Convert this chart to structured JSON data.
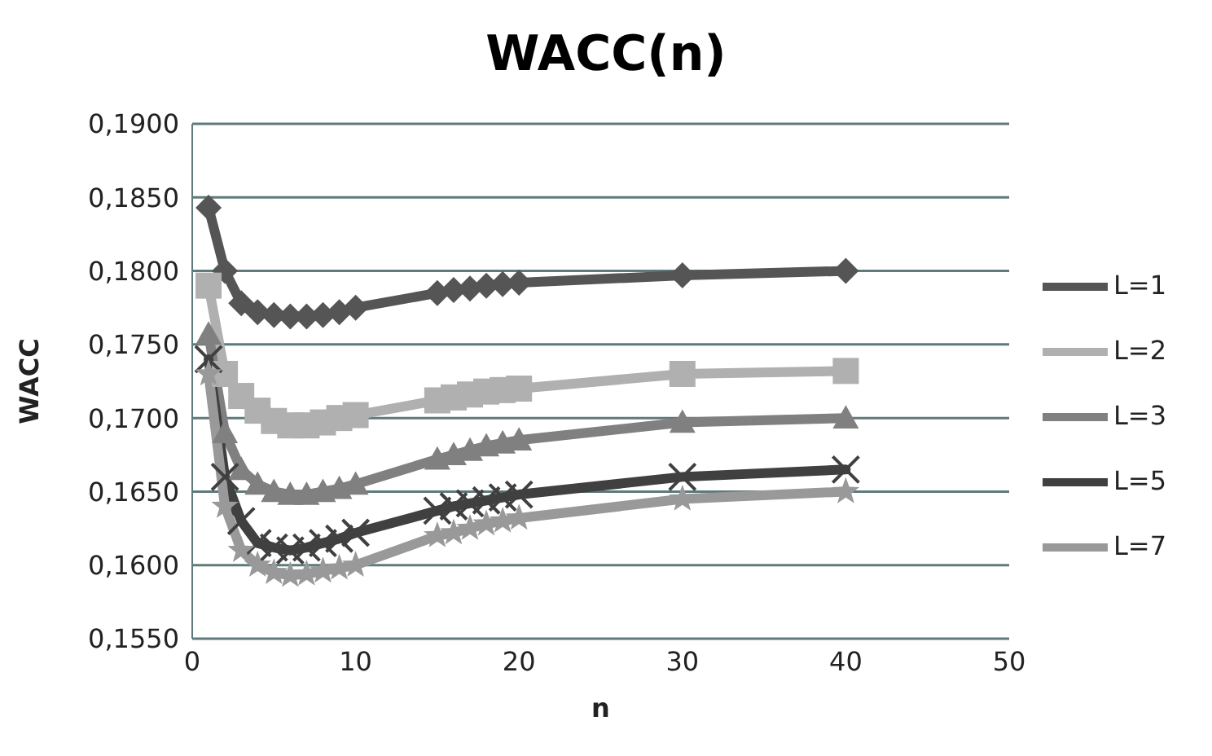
{
  "chart_data": {
    "type": "line",
    "title": "WACC(n)",
    "xlabel": "n",
    "ylabel": "WACC",
    "x": [
      1,
      2,
      3,
      4,
      5,
      6,
      7,
      8,
      9,
      10,
      15,
      16,
      17,
      18,
      19,
      20,
      30,
      40
    ],
    "series": [
      {
        "name": "L=1",
        "color": "#555555",
        "marker": "diamond",
        "values": [
          0.1843,
          0.18,
          0.1778,
          0.1772,
          0.177,
          0.1769,
          0.1769,
          0.177,
          0.1772,
          0.1775,
          0.1785,
          0.1787,
          0.1788,
          0.179,
          0.1791,
          0.1792,
          0.1797,
          0.18
        ]
      },
      {
        "name": "L=2",
        "color": "#b0b0b0",
        "marker": "square",
        "values": [
          0.179,
          0.173,
          0.1715,
          0.1705,
          0.1698,
          0.1695,
          0.1695,
          0.1697,
          0.17,
          0.1702,
          0.1712,
          0.1714,
          0.1716,
          0.1718,
          0.1719,
          0.172,
          0.173,
          0.1732
        ]
      },
      {
        "name": "L=3",
        "color": "#808080",
        "marker": "triangle",
        "values": [
          0.1757,
          0.169,
          0.1665,
          0.1655,
          0.165,
          0.1648,
          0.1648,
          0.165,
          0.1652,
          0.1655,
          0.1672,
          0.1675,
          0.1678,
          0.1681,
          0.1683,
          0.1685,
          0.1697,
          0.17
        ]
      },
      {
        "name": "L=5",
        "color": "#404040",
        "marker": "cross",
        "values": [
          0.174,
          0.166,
          0.163,
          0.1615,
          0.1612,
          0.161,
          0.1612,
          0.1615,
          0.1618,
          0.1622,
          0.1637,
          0.164,
          0.1642,
          0.1644,
          0.1646,
          0.1648,
          0.166,
          0.1665
        ]
      },
      {
        "name": "L=7",
        "color": "#999999",
        "marker": "star",
        "values": [
          0.173,
          0.164,
          0.161,
          0.16,
          0.1595,
          0.1593,
          0.1594,
          0.1596,
          0.1598,
          0.16,
          0.162,
          0.1622,
          0.1625,
          0.1628,
          0.163,
          0.1632,
          0.1645,
          0.165
        ]
      }
    ],
    "xlim": [
      0,
      50
    ],
    "xticks": [
      0,
      10,
      20,
      30,
      40,
      50
    ],
    "ylim": [
      0.155,
      0.19
    ],
    "yticks": [
      {
        "value": 0.155,
        "label": "0,1550"
      },
      {
        "value": 0.16,
        "label": "0,1600"
      },
      {
        "value": 0.165,
        "label": "0,1650"
      },
      {
        "value": 0.17,
        "label": "0,1700"
      },
      {
        "value": 0.175,
        "label": "0,1750"
      },
      {
        "value": 0.18,
        "label": "0,1800"
      },
      {
        "value": 0.185,
        "label": "0,1850"
      },
      {
        "value": 0.19,
        "label": "0,1900"
      }
    ],
    "grid": "y",
    "legend": "right",
    "line_style": "solid"
  }
}
